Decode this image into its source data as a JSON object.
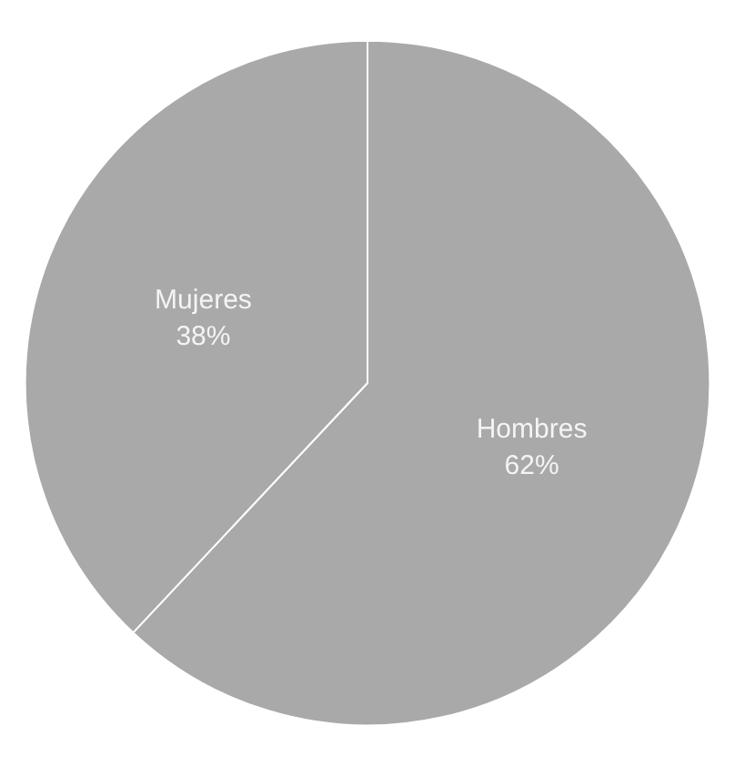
{
  "chart_data": {
    "type": "pie",
    "categories": [
      "Hombres",
      "Mujeres"
    ],
    "values": [
      62,
      38
    ],
    "colors": [
      "#a9a9a9",
      "#a9a9a9"
    ],
    "value_labels": [
      "62%",
      "38%"
    ]
  }
}
